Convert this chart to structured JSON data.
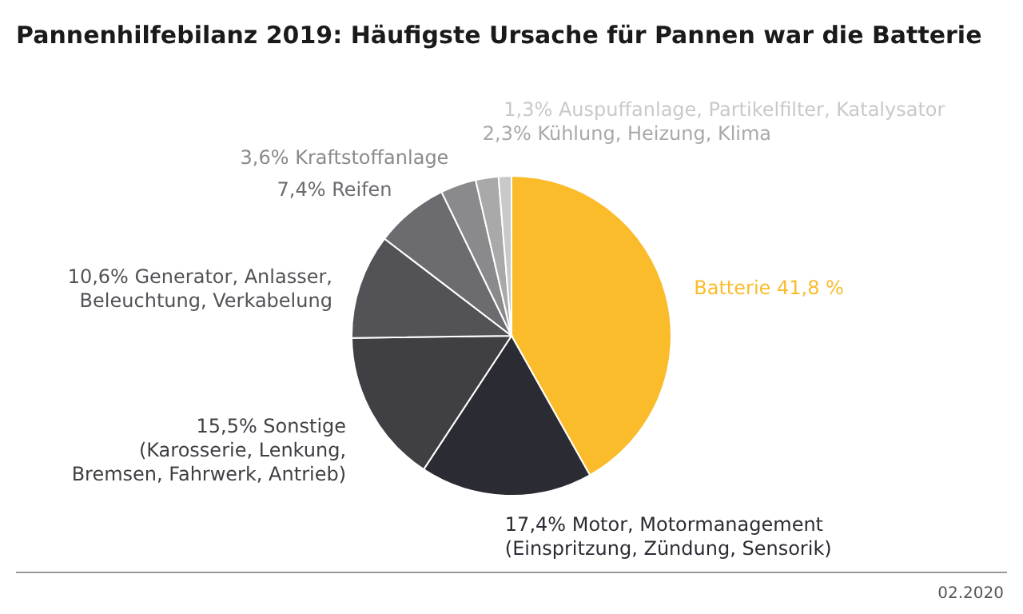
{
  "chart_data": {
    "type": "pie",
    "title": "Pannenhilfebilanz 2019: Häufigste Ursache für Pannen war die Batterie",
    "categories": [
      "Batterie",
      "Motor, Motormanagement\n(Einspritzung, Zündung, Sensorik)",
      "Sonstige\n(Karosserie, Lenkung,\nBremsen, Fahrwerk, Antrieb)",
      "Generator, Anlasser,\nBeleuchtung, Verkabelung",
      "Reifen",
      "Kraftstoffanlage",
      "Kühlung, Heizung, Klima",
      "Auspuffanlage, Partikelfilter, Katalysator"
    ],
    "values": [
      41.8,
      17.4,
      15.5,
      10.6,
      7.4,
      3.6,
      2.3,
      1.3
    ],
    "value_labels": [
      "41,8 %",
      "17,4%",
      "15,5%",
      "10,6%",
      "7,4%",
      "3,6%",
      "2,3%",
      "1,3%"
    ],
    "colors": [
      "#fbbc2c",
      "#2b2b33",
      "#3f3f44",
      "#525257",
      "#6b6b70",
      "#8a8a8d",
      "#a9a9aa",
      "#c9c9c9"
    ],
    "annotations": [
      "02.2020"
    ]
  }
}
